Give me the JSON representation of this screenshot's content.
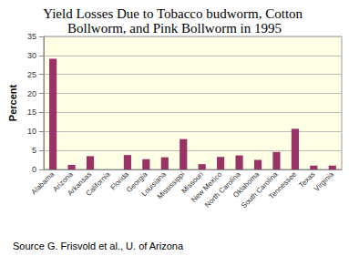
{
  "chart_data": {
    "type": "bar",
    "title": "Yield Losses Due to Tobacco budworm, Cotton Bollworm, and Pink Bollworm in 1995",
    "y_label": "Percent",
    "annotation": "Source G. Frisvold et al., U. of Arizona",
    "categories": [
      "Alabama",
      "Arizona",
      "Arkansas",
      "California",
      "Florida",
      "Georgia",
      "Louisiana",
      "Mississippi",
      "Missouri",
      "New Mexico",
      "North Carolina",
      "Oklahoma",
      "South Carolina",
      "Tennessee",
      "Texas",
      "Virginia"
    ],
    "values": [
      29.1,
      1.2,
      3.5,
      0,
      3.8,
      2.7,
      3.2,
      8.0,
      1.4,
      3.3,
      3.7,
      2.5,
      4.6,
      10.7,
      1.0,
      1.0
    ],
    "color": "#993366",
    "ylim": [
      0,
      35
    ],
    "yticks": [
      0,
      5,
      10,
      15,
      20,
      25,
      30,
      35
    ],
    "grid": true
  }
}
